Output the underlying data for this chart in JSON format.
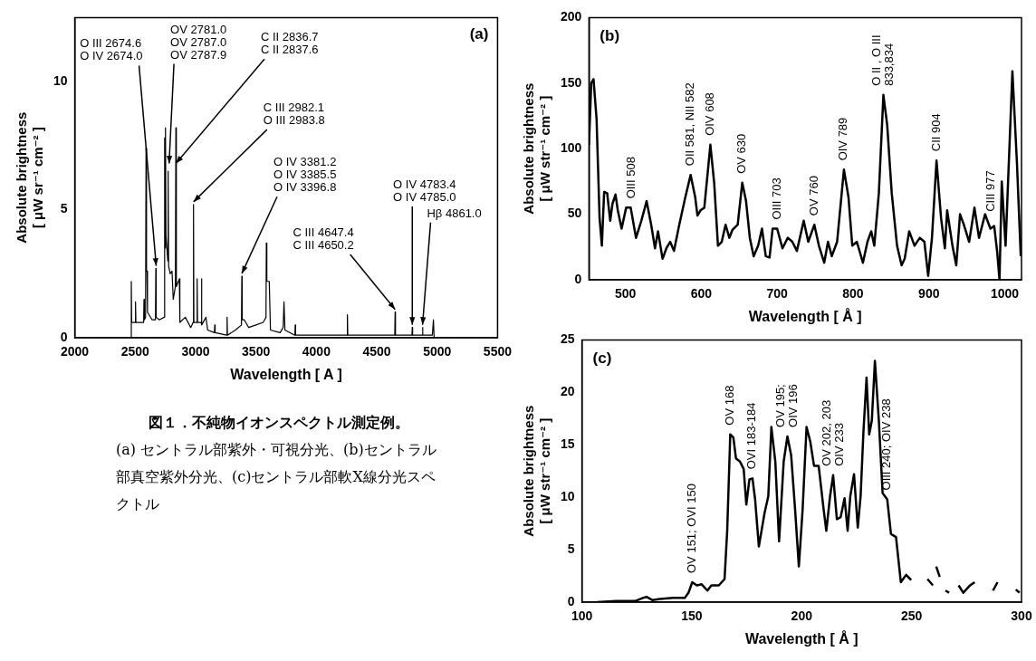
{
  "chart_data": [
    {
      "type": "line",
      "xlabel": "Wavelength [ A ]",
      "ylabel": "Absolute brightness\n[ μW sr⁻¹ cm⁻² ]",
      "color": "#000000",
      "xlim": [
        2000,
        5500
      ],
      "xticks": [
        2000,
        2500,
        3000,
        3500,
        4000,
        4500,
        5000,
        5500
      ],
      "ylim": [
        0,
        12.5
      ],
      "yticks": [
        0,
        5,
        10
      ],
      "x": [
        2000,
        2465,
        2468,
        2471,
        2500,
        2503,
        2506,
        2570,
        2573,
        2576,
        2586,
        2590,
        2594,
        2598,
        2602,
        2640,
        2668,
        2671,
        2674,
        2700,
        2740,
        2744,
        2748,
        2751,
        2755,
        2770,
        2773,
        2777,
        2790,
        2805,
        2815,
        2833,
        2837,
        2841,
        2866,
        2870,
        2915,
        2960,
        2980,
        2983,
        2986,
        3010,
        3013,
        3016,
        3046,
        3049,
        3052,
        3086,
        3100,
        3156,
        3159,
        3162,
        3258,
        3261,
        3264,
        3330,
        3380,
        3383,
        3386,
        3403,
        3440,
        3500,
        3560,
        3583,
        3586,
        3590,
        3610,
        3620,
        3700,
        3725,
        3732,
        3740,
        3822,
        3825,
        3828,
        3900,
        4254,
        4257,
        4260,
        4500,
        4649,
        4652,
        4655,
        4791,
        4794,
        4797,
        4876,
        4879,
        4882,
        4960,
        4969,
        4975,
        5500
      ],
      "values": [
        0,
        0,
        2.2,
        0.6,
        0.6,
        1.4,
        0.6,
        0.6,
        1.5,
        0.7,
        0.8,
        7.4,
        2.6,
        2.6,
        1.0,
        0.7,
        0.7,
        2.7,
        0.8,
        0.7,
        0.8,
        7.8,
        3.5,
        8.2,
        4.0,
        3.0,
        6.5,
        2.8,
        2.5,
        2.6,
        1.5,
        2.0,
        8.2,
        2.0,
        2.3,
        0.6,
        0.8,
        0.4,
        0.6,
        5.2,
        0.6,
        0.6,
        2.3,
        0.6,
        0.6,
        2.3,
        0.5,
        0.8,
        0.3,
        0.2,
        0.5,
        0.2,
        0.1,
        0.8,
        0.1,
        0.3,
        0.5,
        2.4,
        0.7,
        0.7,
        0.4,
        0.5,
        0.6,
        0.8,
        3.7,
        2.2,
        2.2,
        0.3,
        0.2,
        0.4,
        1.4,
        0.3,
        0.1,
        0.5,
        0.1,
        0.1,
        0.1,
        0.9,
        0.1,
        0.1,
        0.1,
        1.0,
        0.1,
        0.1,
        0.4,
        0.1,
        0.1,
        0.4,
        0.1,
        0.1,
        0.7,
        0,
        0
      ],
      "annotations": [
        "(a)",
        {
          "text": "O III 2674.6\nO IV 2674.0",
          "x": 2674,
          "y": 2.7
        },
        {
          "text": "OV 2781.0\nOV 2787.0\nOV 2787.9",
          "x": 2781,
          "y": 6.7
        },
        {
          "text": "C II 2836.7\nC II 2837.6",
          "x": 2837,
          "y": 6.7
        },
        {
          "text": "C III 2982.1\nO III 2983.8",
          "x": 2983,
          "y": 5.2
        },
        {
          "text": "O IV 3381.2\nO IV 3385.5\nO IV 3396.8",
          "x": 3383,
          "y": 2.4
        },
        {
          "text": "C III 4647.4\nC III 4650.2",
          "x": 4652,
          "y": 1.0
        },
        {
          "text": "O IV 4783.4\nO IV 4785.0",
          "x": 4794,
          "y": 0.4
        },
        {
          "text": "Hβ 4861.0",
          "x": 4879,
          "y": 0.4
        }
      ]
    },
    {
      "type": "line",
      "xlabel": "Wavelength [ Å ]",
      "ylabel": "Absolute brightness\n[ μW str⁻¹ cm⁻² ]",
      "color": "#000000",
      "xlim": [
        452,
        1022
      ],
      "xticks": [
        500,
        600,
        700,
        800,
        900,
        1000
      ],
      "ylim": [
        0,
        200
      ],
      "yticks": [
        0,
        50,
        100,
        150,
        200
      ],
      "x": [
        452,
        455,
        458,
        462,
        466,
        469,
        472,
        476,
        480,
        483,
        487,
        490,
        495,
        501,
        507,
        514,
        521,
        528,
        534,
        539,
        543,
        549,
        554,
        559,
        564,
        571,
        579,
        586,
        592,
        595,
        599,
        604,
        612,
        617,
        622,
        627,
        632,
        637,
        641,
        648,
        654,
        659,
        664,
        669,
        675,
        680,
        685,
        690,
        694,
        700,
        707,
        714,
        720,
        726,
        735,
        741,
        749,
        755,
        762,
        767,
        772,
        779,
        788,
        794,
        799,
        805,
        813,
        819,
        824,
        828,
        834,
        840,
        845,
        851,
        858,
        864,
        868,
        874,
        881,
        888,
        894,
        899,
        904,
        910,
        916,
        921,
        924,
        931,
        936,
        941,
        946,
        953,
        960,
        966,
        974,
        981,
        986,
        990,
        993,
        996,
        1001,
        1010,
        1016,
        1021
      ],
      "values": [
        103,
        150,
        153,
        123,
        47,
        26,
        67,
        66,
        45,
        58,
        65,
        53,
        39,
        55,
        55,
        32,
        45,
        60,
        42,
        24,
        37,
        16,
        24,
        29,
        22,
        42,
        63,
        80,
        63,
        49,
        53,
        55,
        103,
        74,
        26,
        29,
        42,
        32,
        38,
        42,
        74,
        60,
        32,
        18,
        26,
        39,
        18,
        17,
        39,
        39,
        24,
        32,
        29,
        22,
        45,
        29,
        42,
        26,
        13,
        29,
        18,
        29,
        84,
        63,
        26,
        29,
        13,
        29,
        37,
        26,
        66,
        141,
        118,
        66,
        26,
        11,
        16,
        37,
        26,
        32,
        29,
        3,
        32,
        91,
        47,
        24,
        53,
        26,
        11,
        50,
        42,
        29,
        55,
        32,
        50,
        39,
        41,
        21,
        0,
        75,
        26,
        159,
        89,
        18
      ],
      "annotations": [
        "(b)",
        {
          "text": "OIII 508",
          "x": 508,
          "y": 55
        },
        {
          "text": "OII 581, NII 582",
          "x": 586,
          "y": 80
        },
        {
          "text": "OIV 608",
          "x": 612,
          "y": 103
        },
        {
          "text": "OV 630",
          "x": 654,
          "y": 74
        },
        {
          "text": "OIII 703",
          "x": 700,
          "y": 39
        },
        {
          "text": "OV 760",
          "x": 749,
          "y": 42
        },
        {
          "text": "OIV 789",
          "x": 788,
          "y": 84
        },
        {
          "text": "O II , O III\n833,834",
          "x": 840,
          "y": 141
        },
        {
          "text": "CII 904",
          "x": 910,
          "y": 91
        },
        {
          "text": "CIII 977",
          "x": 982,
          "y": 45
        }
      ]
    },
    {
      "type": "line",
      "xlabel": "Wavelength [ Å ]",
      "ylabel": "Absolute brightness\n[ μW str⁻¹ cm⁻² ]",
      "color": "#000000",
      "xlim": [
        100,
        300
      ],
      "xticks": [
        100,
        150,
        200,
        250,
        300
      ],
      "ylim": [
        0,
        25
      ],
      "yticks": [
        0,
        5,
        10,
        15,
        20,
        25
      ],
      "x": [
        106.9,
        115.6,
        124.2,
        127.7,
        129.4,
        132,
        135.5,
        141.6,
        146.8,
        148.5,
        150.2,
        152.3,
        154.5,
        157.1,
        158.9,
        162.3,
        164.9,
        166.1,
        167.5,
        168.9,
        170.1,
        171.9,
        173.6,
        174.8,
        176.2,
        177.6,
        178.8,
        180.5,
        183.1,
        184.8,
        186.2,
        188,
        189.7,
        191.8,
        193.5,
        195.2,
        197,
        198.7,
        200.4,
        202.2,
        203.9,
        205.6,
        207.7,
        210,
        211.2,
        212.9,
        214.3,
        216,
        217.7,
        219.5,
        220.9,
        222.1,
        223.8,
        225.5,
        226.8,
        228.1,
        229.5,
        230.7,
        231.9,
        233.3,
        235.1,
        236.8,
        238.9,
        240.6,
        242.9,
        245.1,
        247.5,
        249.8,
        253,
        257.2,
        259.7,
        261,
        261.2,
        262.8,
        264,
        265.4,
        267.1,
        269,
        271.4,
        273.5,
        276.6,
        278.7,
        283,
        287,
        289.1,
        294,
        297.4,
        299.1
      ],
      "values": [
        0,
        0.1,
        0.1,
        0.4,
        0.5,
        0.2,
        0.3,
        0.4,
        0.4,
        0.9,
        1.9,
        1.6,
        1.7,
        1.1,
        1.6,
        1.6,
        2.2,
        6.8,
        16,
        15.7,
        13.7,
        13.4,
        12.7,
        9.3,
        11.7,
        11.8,
        9.8,
        5.3,
        8.5,
        10.1,
        16.7,
        13.4,
        5.8,
        13.4,
        15.8,
        14,
        8.8,
        3.4,
        8.8,
        16.7,
        15.3,
        13,
        13,
        8.8,
        6.8,
        10.1,
        12.1,
        7.9,
        8.1,
        9.9,
        6.8,
        10.1,
        12.2,
        7.1,
        10.1,
        16.3,
        21.4,
        16,
        17.3,
        23,
        17.3,
        10.4,
        9.8,
        6.5,
        6.2,
        1.9,
        2.6,
        2.1,
        null,
        2.2,
        1.6,
        null,
        3.4,
        2.4,
        null,
        1.1,
        0.9,
        null,
        1.6,
        0.9,
        1.6,
        1.9,
        null,
        1.1,
        1.9,
        null,
        1.2,
        0.9
      ],
      "annotations": [
        "(c)",
        {
          "text": "OV 151; OVI 150",
          "x": 150.2,
          "y": 1.9
        },
        {
          "text": "OV 168",
          "x": 167.5,
          "y": 16
        },
        {
          "text": "OVI 183-184",
          "x": 177.6,
          "y": 11.8
        },
        {
          "text": "OV 195;\nOIV 196",
          "x": 193.5,
          "y": 15.8
        },
        {
          "text": "OV 202, 203\nOIV 233",
          "x": 214.3,
          "y": 12.1
        },
        {
          "text": "OIII 240; OIV 238",
          "x": 238.9,
          "y": 9.8
        }
      ]
    },
    {
      "type": "other",
      "title": "図１．不純物イオンスペクトル測定例。",
      "annotations": [
        "(a) セントラル部紫外・可視分光、(b)セントラル部真空紫外分光、(c)セントラル部軟X線分光スペクトル"
      ]
    }
  ]
}
